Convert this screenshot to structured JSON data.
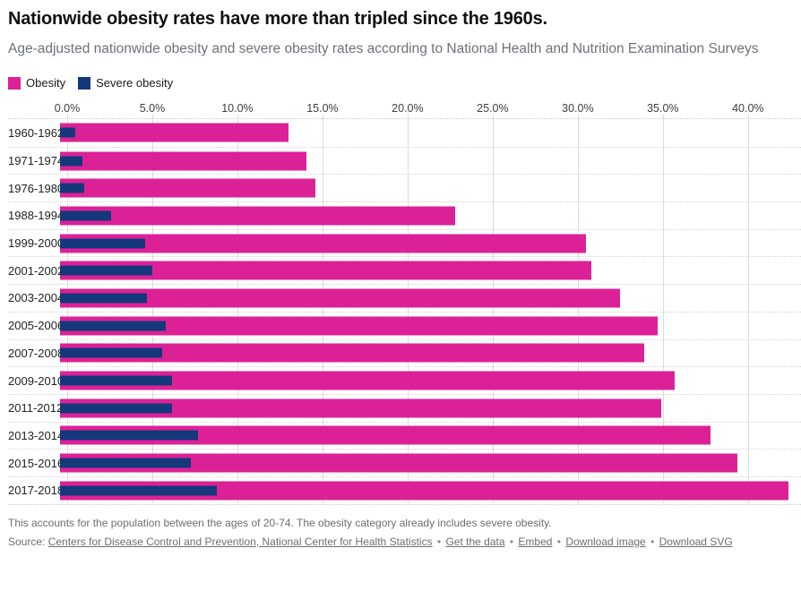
{
  "header": {
    "title": "Nationwide obesity rates have more than tripled since the 1960s.",
    "subtitle": "Age-adjusted nationwide obesity and severe obesity rates according to National Health and Nutrition Examination Surveys"
  },
  "legend": [
    {
      "label": "Obesity",
      "color": "#dc2197"
    },
    {
      "label": "Severe obesity",
      "color": "#14387b"
    }
  ],
  "chart_data": {
    "type": "bar",
    "orientation": "horizontal",
    "title": "Nationwide obesity rates have more than tripled since the 1960s.",
    "categories": [
      "1960-1962",
      "1971-1974",
      "1976-1980",
      "1988-1994",
      "1999-2000",
      "2001-2002",
      "2003-2004",
      "2005-2006",
      "2007-2008",
      "2009-2010",
      "2011-2012",
      "2013-2014",
      "2015-2016",
      "2017-2018"
    ],
    "series": [
      {
        "name": "Obesity",
        "color": "#dc2197",
        "values": [
          13.4,
          14.5,
          15.0,
          23.2,
          30.9,
          31.2,
          32.9,
          35.1,
          34.3,
          36.1,
          35.3,
          38.2,
          39.8,
          42.8
        ]
      },
      {
        "name": "Severe obesity",
        "color": "#14387b",
        "values": [
          0.9,
          1.3,
          1.4,
          3.0,
          5.0,
          5.4,
          5.1,
          6.2,
          6.0,
          6.6,
          6.6,
          8.1,
          7.7,
          9.2
        ]
      }
    ],
    "x_ticks": [
      "0.0%",
      "5.0%",
      "10.0%",
      "15.0%",
      "20.0%",
      "25.0%",
      "30.0%",
      "35.0%",
      "40.0%"
    ],
    "x_tick_values": [
      0,
      5,
      10,
      15,
      20,
      25,
      30,
      35,
      40
    ],
    "xlim": [
      0,
      42.8
    ],
    "xlabel": "",
    "ylabel": "",
    "grid": true,
    "legend_position": "top"
  },
  "footer": {
    "note": "This accounts for the population between the ages of 20-74. The obesity category already includes severe obesity.",
    "source_prefix": "Source: ",
    "source_link": "Centers for Disease Control and Prevention, National Center for Health Statistics",
    "links": [
      "Get the data",
      "Embed",
      "Download image",
      "Download SVG"
    ],
    "separator": "•"
  }
}
